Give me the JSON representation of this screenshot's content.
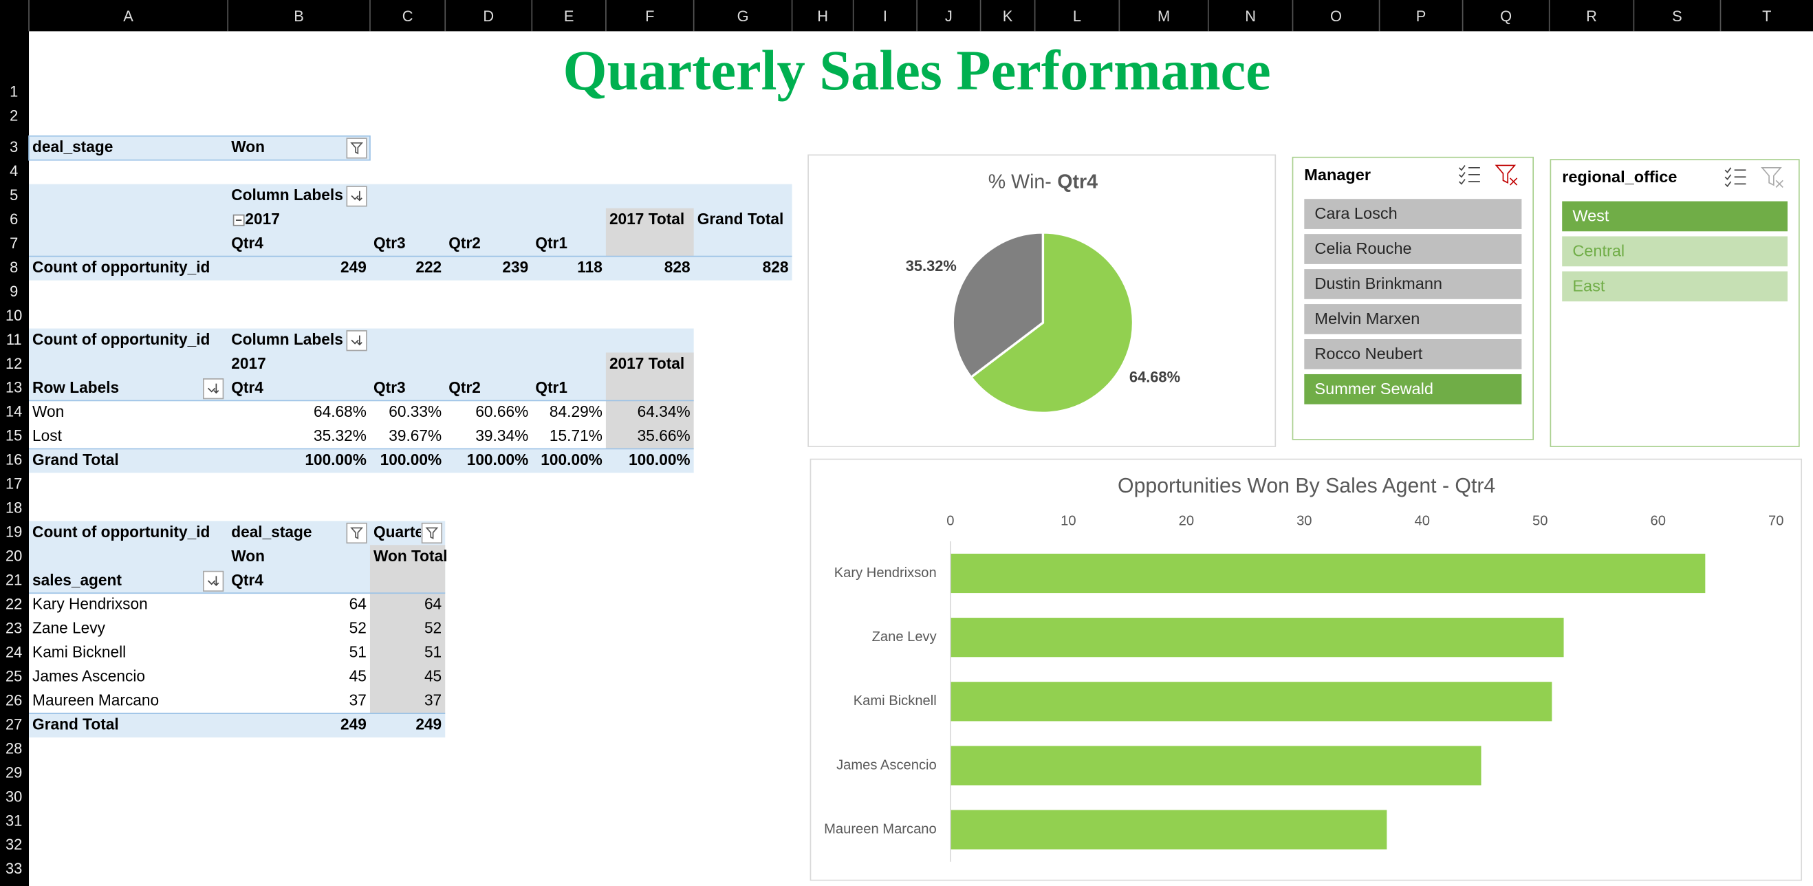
{
  "sheet": {
    "columns": [
      "A",
      "B",
      "C",
      "D",
      "E",
      "F",
      "G",
      "H",
      "I",
      "J",
      "K",
      "L",
      "M",
      "N",
      "O",
      "P",
      "Q",
      "R",
      "S",
      "T"
    ],
    "rows": [
      "1",
      "2",
      "3",
      "4",
      "5",
      "6",
      "7",
      "8",
      "9",
      "10",
      "11",
      "12",
      "13",
      "14",
      "15",
      "16",
      "17",
      "18",
      "19",
      "20",
      "21",
      "22",
      "23",
      "24",
      "25",
      "26",
      "27",
      "28",
      "29",
      "30",
      "31",
      "32",
      "33"
    ]
  },
  "title": "Quarterly Sales Performance",
  "pivot_filter": {
    "field": "deal_stage",
    "value": "Won"
  },
  "pivot_totals": {
    "column_labels": "Column Labels",
    "year": "2017",
    "year_total": "2017 Total",
    "grand_total": "Grand Total",
    "quarters": [
      "Qtr4",
      "Qtr3",
      "Qtr2",
      "Qtr1"
    ],
    "row_label": "Count of opportunity_id",
    "values": [
      249,
      222,
      239,
      118
    ],
    "year_total_value": 828,
    "grand_total_value": 828
  },
  "pivot_rates": {
    "measure": "Count of opportunity_id",
    "column_labels": "Column Labels",
    "year": "2017",
    "year_total": "2017 Total",
    "row_labels": "Row Labels",
    "quarters": [
      "Qtr4",
      "Qtr3",
      "Qtr2",
      "Qtr1"
    ],
    "rows": [
      {
        "label": "Won",
        "values": [
          "64.68%",
          "60.33%",
          "60.66%",
          "84.29%"
        ],
        "total": "64.34%"
      },
      {
        "label": "Lost",
        "values": [
          "35.32%",
          "39.67%",
          "39.34%",
          "15.71%"
        ],
        "total": "35.66%"
      },
      {
        "label": "Grand Total",
        "values": [
          "100.00%",
          "100.00%",
          "100.00%",
          "100.00%"
        ],
        "total": "100.00%"
      }
    ]
  },
  "pivot_agents": {
    "measure": "Count of opportunity_id",
    "column_field": "deal_stage",
    "quarter_field": "Quarter",
    "stage": "Won",
    "stage_total": "Won Total",
    "row_field": "sales_agent",
    "quarter": "Qtr4",
    "rows": [
      {
        "label": "Kary Hendrixson",
        "value": 64,
        "total": 64
      },
      {
        "label": "Zane Levy",
        "value": 52,
        "total": 52
      },
      {
        "label": "Kami Bicknell",
        "value": 51,
        "total": 51
      },
      {
        "label": "James Ascencio",
        "value": 45,
        "total": 45
      },
      {
        "label": "Maureen Marcano",
        "value": 37,
        "total": 37
      }
    ],
    "grand_total": {
      "label": "Grand Total",
      "value": 249,
      "total": 249
    }
  },
  "slicers": [
    {
      "title": "Manager",
      "items": [
        {
          "label": "Cara Losch",
          "state": "no-data"
        },
        {
          "label": "Celia Rouche",
          "state": "no-data"
        },
        {
          "label": "Dustin Brinkmann",
          "state": "no-data"
        },
        {
          "label": "Melvin Marxen",
          "state": "no-data"
        },
        {
          "label": "Rocco Neubert",
          "state": "no-data"
        },
        {
          "label": "Summer Sewald",
          "state": "selected"
        }
      ]
    },
    {
      "title": "regional_office",
      "items": [
        {
          "label": "West",
          "state": "selected"
        },
        {
          "label": "Central",
          "state": "unselected"
        },
        {
          "label": "East",
          "state": "unselected"
        }
      ]
    }
  ],
  "chart_data": [
    {
      "type": "pie",
      "title": "% Win-",
      "title_filter": "Qtr4",
      "values": [
        64.68,
        35.32
      ],
      "value_labels": [
        "64.68%",
        "35.32%"
      ],
      "colors": [
        "#92d050",
        "#808080"
      ]
    },
    {
      "type": "bar",
      "orientation": "horizontal",
      "title": "Opportunities Won By Sales Agent - Qtr4",
      "categories": [
        "Kary Hendrixson",
        "Zane Levy",
        "Kami Bicknell",
        "James Ascencio",
        "Maureen Marcano"
      ],
      "values": [
        64,
        52,
        51,
        45,
        37
      ],
      "color": "#92d050",
      "xlim": [
        0,
        70
      ],
      "xticks": [
        0,
        10,
        20,
        30,
        40,
        50,
        60,
        70
      ]
    }
  ]
}
